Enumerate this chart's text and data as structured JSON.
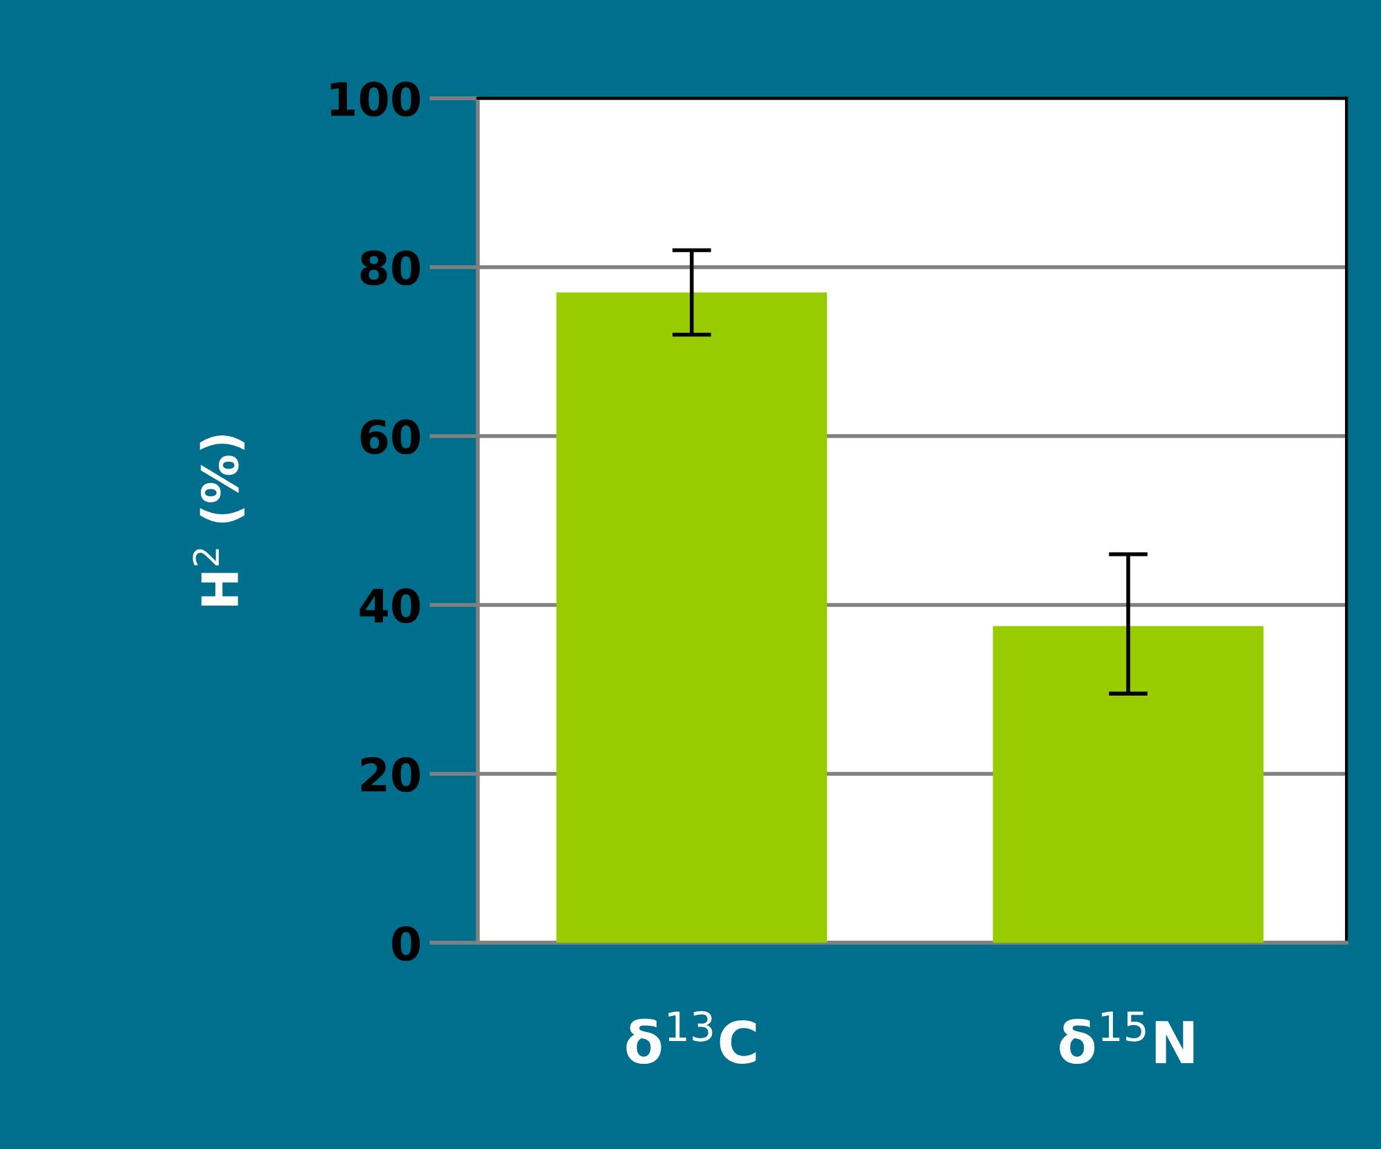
{
  "chart_data": {
    "type": "bar",
    "categories": [
      "δ$^{13}$C",
      "δ$^{15}$N"
    ],
    "values": [
      77,
      37.5
    ],
    "errors": [
      [
        72,
        82
      ],
      [
        29.5,
        46
      ]
    ],
    "color": "#99cc00",
    "ylabel": "H$^{2}$ (%)",
    "ylim": [
      0,
      100
    ],
    "yticks": [
      0,
      20,
      40,
      60,
      80,
      100
    ],
    "grid": "y"
  }
}
